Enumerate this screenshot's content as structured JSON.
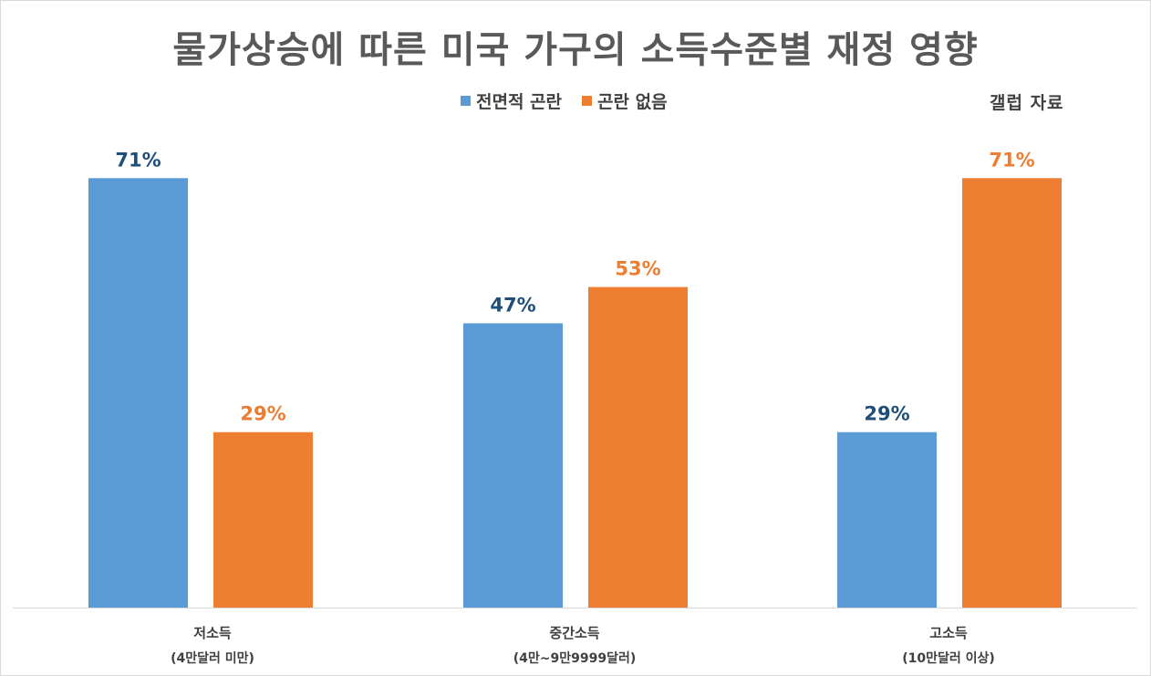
{
  "chart_data": {
    "type": "bar",
    "title": "물가상승에 따른 미국 가구의 소득수준별 재정 영향",
    "source_note": "갤럽 자료",
    "categories": [
      "저소득",
      "중간소득",
      "고소득"
    ],
    "category_sublabels": [
      "(4만달러 미만)",
      "(4만~9만9999달러)",
      "(10만달러 이상)"
    ],
    "series": [
      {
        "name": "전면적 곤란",
        "values": [
          71,
          47,
          29
        ],
        "color": "#5b9bd5",
        "label_color": "#1f4e79"
      },
      {
        "name": "곤란 없음",
        "values": [
          29,
          53,
          71
        ],
        "color": "#ed7d31",
        "label_color": "#ed7d31"
      }
    ],
    "value_suffix": "%",
    "ylim": [
      0,
      100
    ],
    "grid": false,
    "legend_position": "top"
  }
}
